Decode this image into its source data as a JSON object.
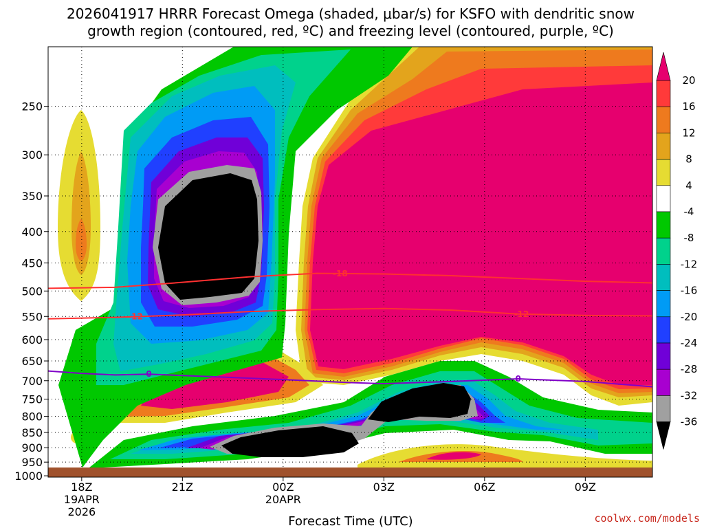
{
  "chart_data": {
    "type": "heatmap",
    "title_line1": "2026041917 HRRR Forecast Omega (shaded, μbar/s) for KSFO with dendritic snow",
    "title_line2": "growth region (contoured, red, ºC) and freezing level (contoured, purple, ºC)",
    "xlabel": "Forecast Time (UTC)",
    "x_ticks": [
      {
        "hour": 0,
        "label": "18Z",
        "sub1": "19APR",
        "sub2": "2026"
      },
      {
        "hour": 3,
        "label": "21Z",
        "sub1": "",
        "sub2": ""
      },
      {
        "hour": 6,
        "label": "00Z",
        "sub1": "20APR",
        "sub2": ""
      },
      {
        "hour": 9,
        "label": "03Z",
        "sub1": "",
        "sub2": ""
      },
      {
        "hour": 12,
        "label": "06Z",
        "sub1": "",
        "sub2": ""
      },
      {
        "hour": 15,
        "label": "09Z",
        "sub1": "",
        "sub2": ""
      }
    ],
    "xlim": [
      -1,
      17
    ],
    "ylim": [
      1005,
      200
    ],
    "y_ticks": [
      250,
      300,
      350,
      400,
      450,
      500,
      550,
      600,
      650,
      700,
      750,
      800,
      850,
      900,
      950,
      1000
    ],
    "grid": true,
    "colorbar": {
      "levels": [
        20,
        16,
        12,
        8,
        4,
        -4,
        -8,
        -12,
        -16,
        -20,
        -24,
        -28,
        -32,
        -36
      ],
      "colors": {
        "gt20": "#e6006e",
        "16_20": "#ff3a3a",
        "12_16": "#ee7a1e",
        "8_12": "#e3a41c",
        "4_8": "#e6dc32",
        "-4_4": "#ffffff",
        "-8_-4": "#00c800",
        "-12_-8": "#00d28c",
        "-16_-12": "#00bebe",
        "-20_-16": "#009bf5",
        "-24_-20": "#2040ff",
        "-28_-24": "#7000d8",
        "-32_-28": "#a800d0",
        "-36_-32": "#a0a0a0",
        "lt-36": "#000000"
      }
    },
    "contours": {
      "dgz_color": "#ff3030",
      "freezing_color": "#8000c8",
      "minus18": {
        "label": "-18",
        "points": [
          [
            -1,
            495
          ],
          [
            1,
            493
          ],
          [
            3,
            484
          ],
          [
            5,
            474
          ],
          [
            7,
            468
          ],
          [
            9,
            469
          ],
          [
            11,
            472
          ],
          [
            13,
            477
          ],
          [
            15,
            482
          ],
          [
            17,
            485
          ]
        ]
      },
      "minus12": {
        "label": "-12",
        "points": [
          [
            -1,
            555
          ],
          [
            1,
            552
          ],
          [
            3,
            547
          ],
          [
            5,
            540
          ],
          [
            7,
            536
          ],
          [
            9,
            534
          ],
          [
            11,
            537
          ],
          [
            13,
            545
          ],
          [
            15,
            548
          ],
          [
            17,
            549
          ]
        ]
      },
      "freezing": {
        "label": "0",
        "points": [
          [
            -1,
            675
          ],
          [
            0,
            681
          ],
          [
            1,
            685
          ],
          [
            2,
            683
          ],
          [
            4,
            690
          ],
          [
            6,
            697
          ],
          [
            8,
            705
          ],
          [
            9,
            708
          ],
          [
            11,
            702
          ],
          [
            13,
            695
          ],
          [
            15,
            702
          ],
          [
            17,
            716
          ]
        ]
      }
    },
    "ground_color": "#a0522d"
  },
  "credit": "coolwx.com/models"
}
